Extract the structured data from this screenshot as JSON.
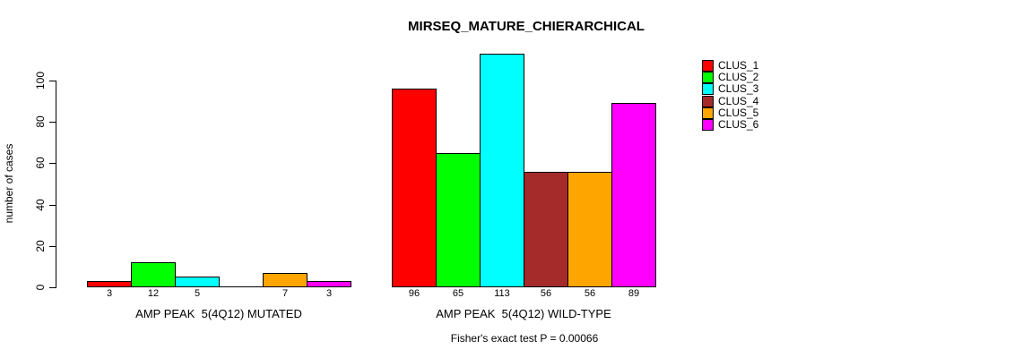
{
  "title": "MIRSEQ_MATURE_CHIERARCHICAL",
  "chart_data": {
    "type": "bar",
    "title": "MIRSEQ_MATURE_CHIERARCHICAL",
    "xlabel": "",
    "ylabel": "number of cases",
    "ylim": [
      0,
      115
    ],
    "yticks": [
      0,
      20,
      40,
      60,
      80,
      100
    ],
    "grid": false,
    "legend_position": "top-right",
    "series": [
      {
        "name": "CLUS_1",
        "color": "#FF0000"
      },
      {
        "name": "CLUS_2",
        "color": "#00FF00"
      },
      {
        "name": "CLUS_3",
        "color": "#00FFFF"
      },
      {
        "name": "CLUS_4",
        "color": "#A52A2A"
      },
      {
        "name": "CLUS_5",
        "color": "#FFA500"
      },
      {
        "name": "CLUS_6",
        "color": "#FF00FF"
      }
    ],
    "groups": [
      {
        "label": "AMP PEAK  5(4Q12) MUTATED",
        "values": [
          3,
          12,
          5,
          0,
          7,
          3
        ]
      },
      {
        "label": "AMP PEAK  5(4Q12) WILD-TYPE",
        "values": [
          96,
          65,
          113,
          56,
          56,
          89
        ]
      }
    ],
    "bar_value_labels_shown": true,
    "zero_bars_hidden": true,
    "annotation": "Fisher's exact test P = 0.00066"
  }
}
